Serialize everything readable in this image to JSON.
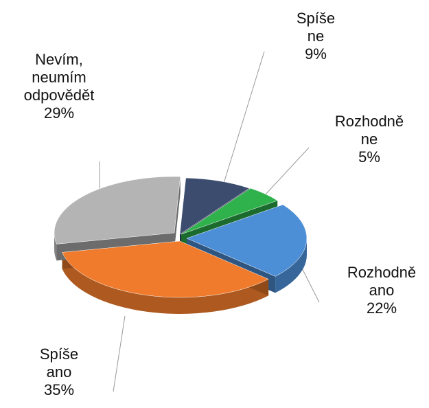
{
  "chart_data": {
    "type": "pie",
    "categories": [
      "Spíše ne",
      "Rozhodně ne",
      "Rozhodně ano",
      "Spíše ano",
      "Nevím, neumím odpovědět"
    ],
    "values": [
      9,
      5,
      22,
      35,
      29
    ],
    "value_labels": [
      "9%",
      "5%",
      "22%",
      "35%",
      "29%"
    ],
    "colors": [
      "#3b4c6e",
      "#2fb24c",
      "#4d8fd6",
      "#f07b2c",
      "#b4b4b4"
    ]
  }
}
